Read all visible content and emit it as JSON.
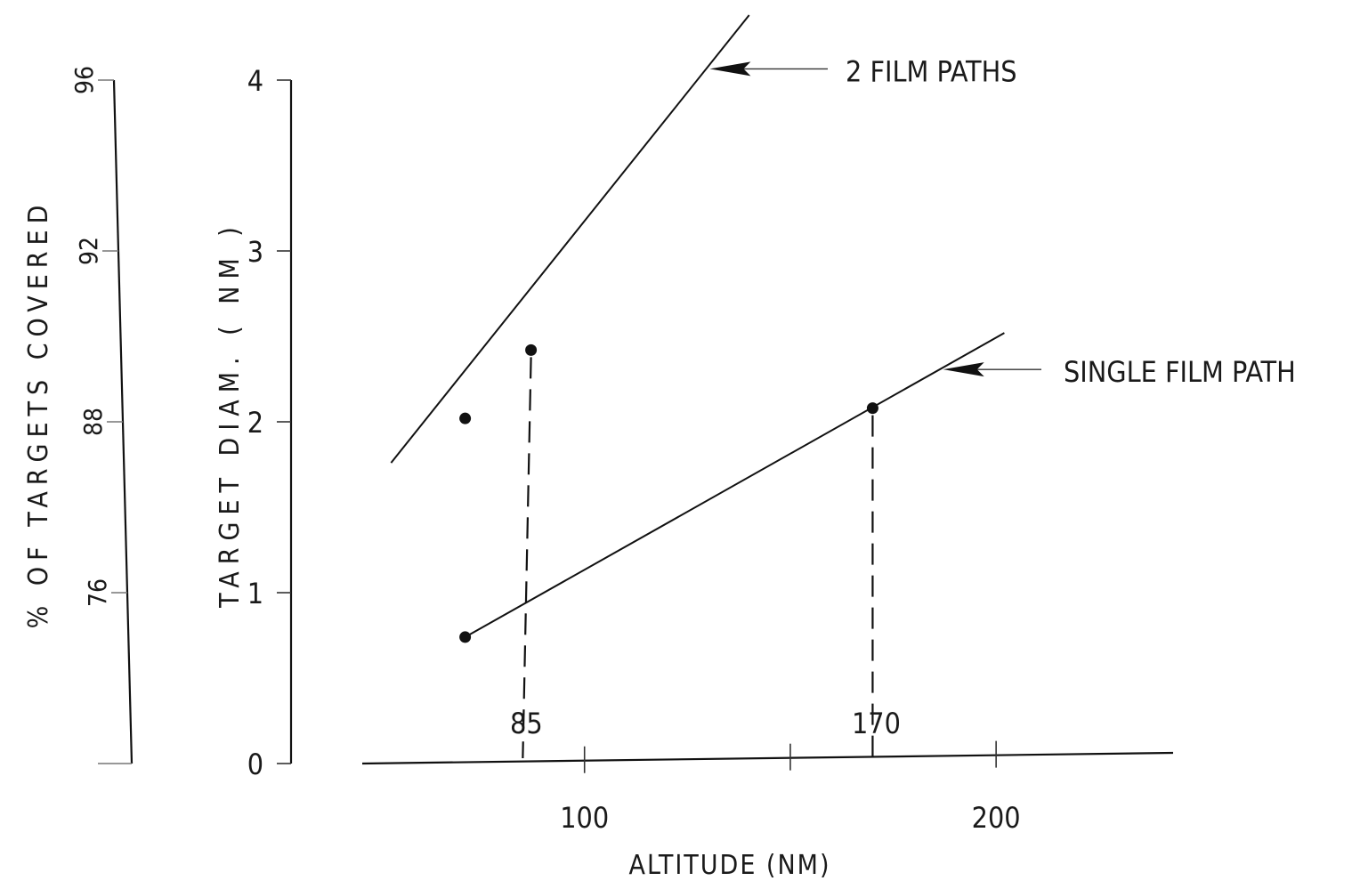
{
  "chart_data": {
    "type": "line",
    "title": "",
    "xlabel": "ALTITUDE (NM)",
    "ylabel": "TARGET DIAM. ( NM )",
    "y2label": "% OF TARGETS COVERED",
    "xlim": [
      46,
      243
    ],
    "ylim": [
      0,
      4
    ],
    "x_ticks": [
      100,
      200
    ],
    "y_ticks": [
      0,
      1,
      2,
      3,
      4
    ],
    "y2_ticks": [
      {
        "at": 1,
        "label": "76"
      },
      {
        "at": 2,
        "label": "88"
      },
      {
        "at": 3,
        "label": "92"
      },
      {
        "at": 4,
        "label": "96"
      }
    ],
    "series": [
      {
        "name": "2 FILM PATHS",
        "x": [
          53,
          140
        ],
        "y": [
          1.76,
          4.38
        ],
        "points": [
          {
            "x": 71,
            "y": 2.02
          },
          {
            "x": 87,
            "y": 2.42
          }
        ]
      },
      {
        "name": "SINGLE FILM PATH",
        "x": [
          71,
          202
        ],
        "y": [
          0.74,
          2.52
        ],
        "points": [
          {
            "x": 71,
            "y": 0.74
          },
          {
            "x": 170,
            "y": 2.08
          }
        ]
      }
    ],
    "reference_lines": [
      {
        "label": "85",
        "x": 85,
        "y_top": 2.42
      },
      {
        "label": "170",
        "x": 170,
        "y_top": 2.08
      }
    ],
    "annotations": [
      {
        "text": "2 FILM PATHS",
        "points_to_series": 0
      },
      {
        "text": "SINGLE FILM PATH",
        "points_to_series": 1
      }
    ],
    "grid": false,
    "legend": "none"
  }
}
